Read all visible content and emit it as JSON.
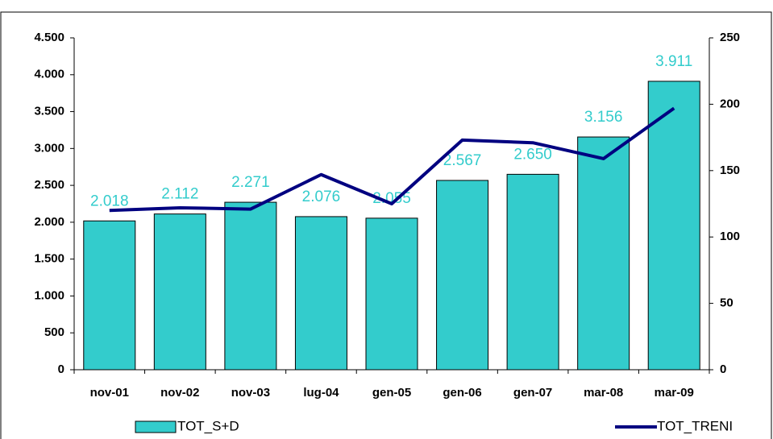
{
  "chart_data": {
    "type": "bar-line",
    "categories": [
      "nov-01",
      "nov-02",
      "nov-03",
      "lug-04",
      "gen-05",
      "gen-06",
      "gen-07",
      "mar-08",
      "mar-09"
    ],
    "series": [
      {
        "name": "TOT_S+D",
        "type": "bar",
        "color": "#33CCCC",
        "values": [
          2018,
          2112,
          2271,
          2076,
          2055,
          2567,
          2650,
          3156,
          3911
        ],
        "value_labels": [
          "2.018",
          "2.112",
          "2.271",
          "2.076",
          "2.055",
          "2.567",
          "2.650",
          "3.156",
          "3.911"
        ]
      },
      {
        "name": "TOT_TRENI",
        "type": "line",
        "color": "#000080",
        "axis": "y2",
        "values": [
          120,
          122,
          121,
          147,
          125,
          173,
          171,
          159,
          197
        ]
      }
    ],
    "ylim": [
      0,
      4500
    ],
    "yticks": [
      0,
      500,
      {
        "value": 1000,
        "label": "1.000"
      },
      {
        "value": 1500,
        "label": "1.500"
      },
      {
        "value": 2000,
        "label": "2.000"
      },
      {
        "value": 2500,
        "label": "2.500"
      },
      {
        "value": 3000,
        "label": "3.000"
      },
      {
        "value": 3500,
        "label": "3.500"
      },
      {
        "value": 4000,
        "label": "4.000"
      },
      {
        "value": 4500,
        "label": "4.500"
      }
    ],
    "y2lim": [
      0,
      250
    ],
    "y2ticks": [
      0,
      50,
      100,
      150,
      200,
      250
    ],
    "legend": "bottom",
    "grid": false
  }
}
